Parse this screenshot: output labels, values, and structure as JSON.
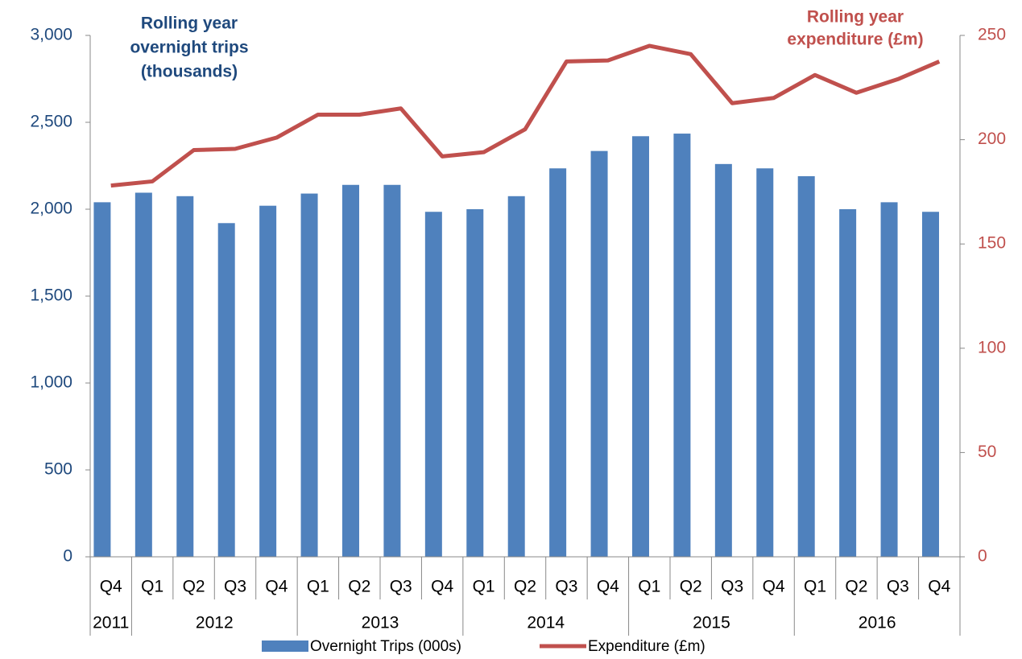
{
  "chart_data": {
    "type": "bar_line",
    "y_label": [
      "Rolling year",
      "overnight trips",
      "(thousands)"
    ],
    "y2_label": [
      "Rolling year",
      "expenditure (£m)"
    ],
    "categories": [
      "Q4",
      "Q1",
      "Q2",
      "Q3",
      "Q4",
      "Q1",
      "Q2",
      "Q3",
      "Q4",
      "Q1",
      "Q2",
      "Q3",
      "Q4",
      "Q1",
      "Q2",
      "Q3",
      "Q4",
      "Q1",
      "Q2",
      "Q3",
      "Q4"
    ],
    "years": [
      "2011",
      "2012",
      "2013",
      "2014",
      "2015",
      "2016"
    ],
    "series": [
      {
        "name": "Overnight Trips (000s)",
        "type": "bar",
        "color": "#4f81bd",
        "values": [
          2040,
          2095,
          2075,
          1920,
          2020,
          2090,
          2140,
          2140,
          1985,
          2000,
          2075,
          2235,
          2335,
          2420,
          2435,
          2260,
          2235,
          2190,
          2000,
          2040,
          1985
        ]
      },
      {
        "name": "Expenditure (£m)",
        "type": "line",
        "axis": "y2",
        "color": "#c0504d",
        "values": [
          178,
          180,
          195,
          195.6,
          201,
          212,
          212,
          215,
          192,
          194,
          205,
          237.5,
          238,
          245,
          241,
          217.5,
          220,
          231,
          222.5,
          229,
          237.5
        ]
      }
    ],
    "ylim": [
      0,
      3000
    ],
    "yticks": [
      0,
      500,
      {
        "value": 1000,
        "label": "1,000"
      },
      {
        "value": 1500,
        "label": "1,500"
      },
      {
        "value": 2000,
        "label": "2,000"
      },
      {
        "value": 2500,
        "label": "2,500"
      },
      {
        "value": 3000,
        "label": "3,000"
      }
    ],
    "y2lim": [
      0,
      250
    ],
    "y2ticks": [
      0,
      50,
      100,
      150,
      200,
      250
    ],
    "ycolor": "#1f497d",
    "y2color": "#c0504d",
    "legend": "bottom"
  }
}
